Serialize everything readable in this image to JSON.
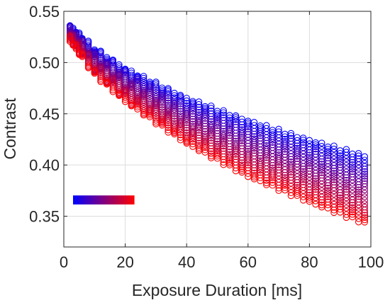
{
  "chart_data": {
    "type": "scatter",
    "title": "",
    "xlabel": "Exposure Duration [ms]",
    "ylabel": "Contrast",
    "xlim": [
      0,
      100
    ],
    "ylim": [
      0.32,
      0.55
    ],
    "x_ticks": [
      "0",
      "20",
      "40",
      "60",
      "80",
      "100"
    ],
    "y_ticks": [
      "0.35",
      "0.40",
      "0.45",
      "0.50",
      "0.55"
    ],
    "grid": true,
    "marker": "open-circle",
    "colormap": {
      "from": "#0000ff",
      "to": "#ff0000"
    },
    "colorbar": {
      "orientation": "horizontal",
      "placement": "lower-left",
      "x_range": [
        3,
        23
      ]
    },
    "x_samples": [
      2,
      3,
      4,
      5,
      6,
      8,
      10,
      12,
      14,
      16,
      18,
      20,
      22,
      24,
      26,
      28,
      30,
      32,
      34,
      36,
      38,
      40,
      42,
      44,
      46,
      48,
      50,
      52,
      54,
      56,
      58,
      60,
      62,
      64,
      66,
      68,
      70,
      72,
      74,
      76,
      78,
      80,
      82,
      84,
      86,
      88,
      90,
      92,
      94,
      96,
      98
    ],
    "envelope": {
      "x": [
        2,
        10,
        20,
        40,
        60,
        80,
        100
      ],
      "blue_upper": [
        0.536,
        0.514,
        0.494,
        0.465,
        0.443,
        0.424,
        0.407
      ],
      "red_lower": [
        0.521,
        0.488,
        0.462,
        0.421,
        0.389,
        0.364,
        0.341
      ]
    },
    "series_count": 24
  }
}
